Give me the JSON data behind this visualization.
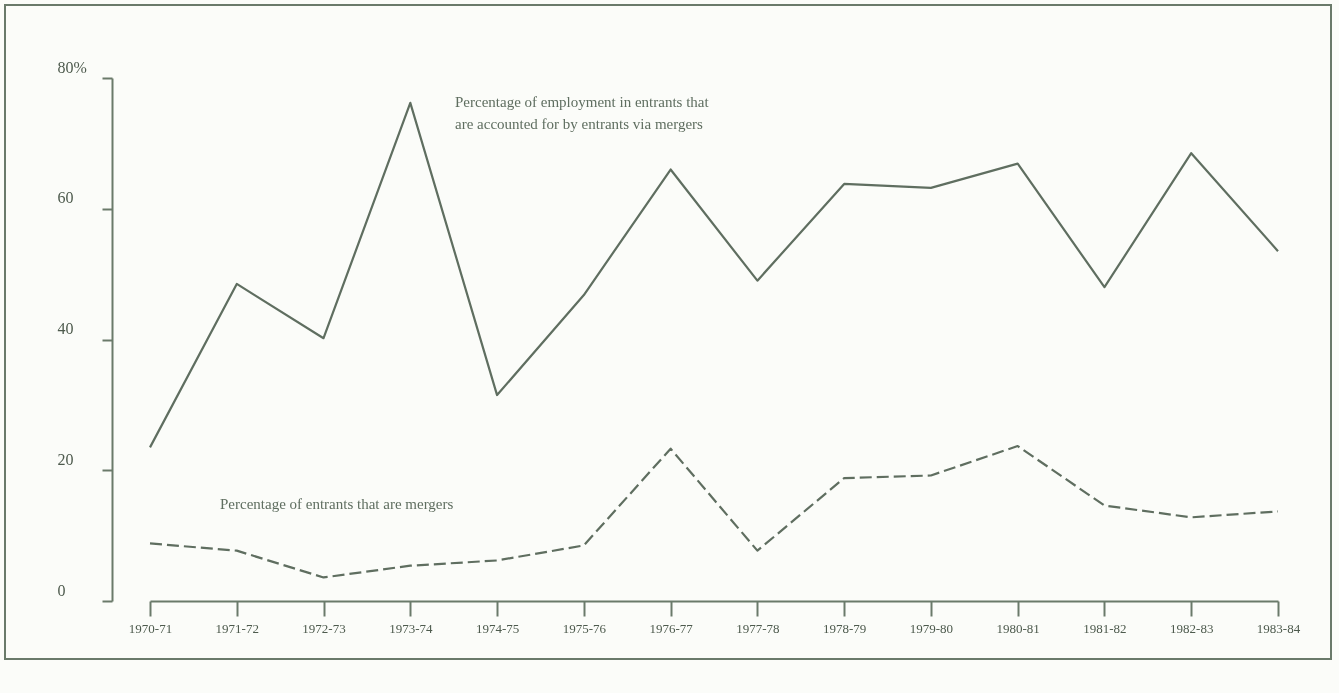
{
  "chart_data": {
    "type": "line",
    "categories": [
      "1970-71",
      "1971-72",
      "1972-73",
      "1973-74",
      "1974-75",
      "1975-76",
      "1976-77",
      "1977-78",
      "1978-79",
      "1979-80",
      "1980-81",
      "1981-82",
      "1982-83",
      "1983-84"
    ],
    "series": [
      {
        "name": "Percentage of employment in entrants that are accounted for by entrants via mergers",
        "color": "#5f6e60",
        "line_style": "solid",
        "values": [
          23.5,
          48.5,
          40.2,
          76.2,
          31.5,
          46.8,
          66,
          49,
          63.8,
          63.2,
          66.9,
          48,
          68.5,
          53.5
        ]
      },
      {
        "name": "Percentage of entrants that are mergers",
        "color": "#5f6e60",
        "line_style": "dashed",
        "values": [
          8.8,
          7.7,
          3.6,
          5.4,
          6.2,
          8.5,
          23.3,
          7.7,
          18.8,
          19.2,
          23.7,
          14.6,
          12.8,
          13.7
        ]
      }
    ],
    "ylim": [
      0,
      80
    ],
    "yticks": [
      0,
      20,
      40,
      60,
      {
        "value": 80,
        "label": "80%"
      }
    ],
    "grid": false,
    "legend": false
  }
}
